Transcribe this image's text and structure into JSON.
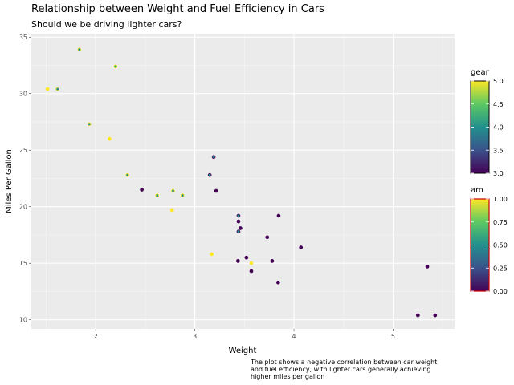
{
  "chart_data": {
    "type": "scatter",
    "title": "Relationship between Weight and Fuel Efficiency in Cars",
    "subtitle": "Should we be driving lighter cars?",
    "xlabel": "Weight",
    "ylabel": "Miles Per Gallon",
    "caption_lines": [
      "The plot shows a negative correlation between car weight",
      "and fuel efficiency, with lighter cars generally achieving",
      "higher miles per gallon"
    ],
    "xlim": [
      1.35,
      5.62
    ],
    "ylim": [
      9.2,
      35.3
    ],
    "x_ticks": [
      2,
      3,
      4,
      5
    ],
    "y_ticks": [
      10,
      15,
      20,
      25,
      30,
      35
    ],
    "grid": true,
    "fill_legend": {
      "title": "gear",
      "range": [
        3,
        5
      ],
      "ticks": [
        "3.0",
        "3.5",
        "4.0",
        "4.5",
        "5.0"
      ],
      "colormap": "viridis"
    },
    "outline_legend": {
      "title": "am",
      "range": [
        0,
        1
      ],
      "ticks": [
        "0.00",
        "0.25",
        "0.50",
        "0.75",
        "1.00"
      ],
      "colormap": "viridis"
    },
    "points": [
      {
        "wt": 2.62,
        "mpg": 21.0,
        "gear": 4,
        "am": 1
      },
      {
        "wt": 2.875,
        "mpg": 21.0,
        "gear": 4,
        "am": 1
      },
      {
        "wt": 2.32,
        "mpg": 22.8,
        "gear": 4,
        "am": 1
      },
      {
        "wt": 3.215,
        "mpg": 21.4,
        "gear": 3,
        "am": 0
      },
      {
        "wt": 3.44,
        "mpg": 18.7,
        "gear": 3,
        "am": 0
      },
      {
        "wt": 3.46,
        "mpg": 18.1,
        "gear": 3,
        "am": 0
      },
      {
        "wt": 3.57,
        "mpg": 14.3,
        "gear": 3,
        "am": 0
      },
      {
        "wt": 3.19,
        "mpg": 24.4,
        "gear": 4,
        "am": 0
      },
      {
        "wt": 3.15,
        "mpg": 22.8,
        "gear": 4,
        "am": 0
      },
      {
        "wt": 3.44,
        "mpg": 19.2,
        "gear": 4,
        "am": 0
      },
      {
        "wt": 3.44,
        "mpg": 17.8,
        "gear": 4,
        "am": 0
      },
      {
        "wt": 4.07,
        "mpg": 16.4,
        "gear": 3,
        "am": 0
      },
      {
        "wt": 3.73,
        "mpg": 17.3,
        "gear": 3,
        "am": 0
      },
      {
        "wt": 3.78,
        "mpg": 15.2,
        "gear": 3,
        "am": 0
      },
      {
        "wt": 5.25,
        "mpg": 10.4,
        "gear": 3,
        "am": 0
      },
      {
        "wt": 5.424,
        "mpg": 10.4,
        "gear": 3,
        "am": 0
      },
      {
        "wt": 5.345,
        "mpg": 14.7,
        "gear": 3,
        "am": 0
      },
      {
        "wt": 2.2,
        "mpg": 32.4,
        "gear": 4,
        "am": 1
      },
      {
        "wt": 1.615,
        "mpg": 30.4,
        "gear": 4,
        "am": 1
      },
      {
        "wt": 1.835,
        "mpg": 33.9,
        "gear": 4,
        "am": 1
      },
      {
        "wt": 2.465,
        "mpg": 21.5,
        "gear": 3,
        "am": 0
      },
      {
        "wt": 3.52,
        "mpg": 15.5,
        "gear": 3,
        "am": 0
      },
      {
        "wt": 3.435,
        "mpg": 15.2,
        "gear": 3,
        "am": 0
      },
      {
        "wt": 3.84,
        "mpg": 13.3,
        "gear": 3,
        "am": 0
      },
      {
        "wt": 3.845,
        "mpg": 19.2,
        "gear": 3,
        "am": 0
      },
      {
        "wt": 1.935,
        "mpg": 27.3,
        "gear": 4,
        "am": 1
      },
      {
        "wt": 2.14,
        "mpg": 26.0,
        "gear": 5,
        "am": 1
      },
      {
        "wt": 1.513,
        "mpg": 30.4,
        "gear": 5,
        "am": 1
      },
      {
        "wt": 3.17,
        "mpg": 15.8,
        "gear": 5,
        "am": 1
      },
      {
        "wt": 2.77,
        "mpg": 19.7,
        "gear": 5,
        "am": 1
      },
      {
        "wt": 3.57,
        "mpg": 15.0,
        "gear": 5,
        "am": 1
      },
      {
        "wt": 2.78,
        "mpg": 21.4,
        "gear": 4,
        "am": 1
      }
    ]
  }
}
